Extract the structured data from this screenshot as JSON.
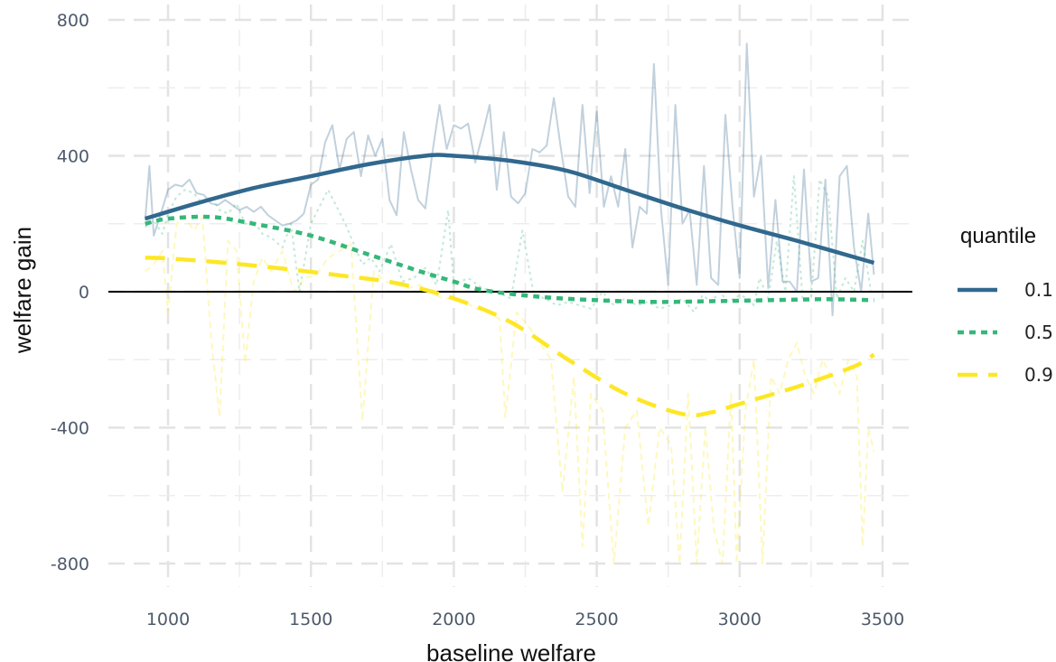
{
  "chart_data": {
    "type": "line",
    "title": "",
    "xlabel": "baseline welfare",
    "ylabel": "welfare gain",
    "xlim": [
      800,
      3600
    ],
    "ylim": [
      -870,
      800
    ],
    "x_ticks": [
      1000,
      1500,
      2000,
      2500,
      3000,
      3500
    ],
    "y_ticks": [
      -800,
      -400,
      0,
      400,
      800
    ],
    "grid": true,
    "legend": {
      "title": "quantile",
      "position": "right"
    },
    "reference_line": {
      "y": 0,
      "color": "#000000"
    },
    "series": [
      {
        "name": "0.1",
        "color": "#31688e",
        "dash": "solid",
        "smooth_x": [
          920,
          1100,
          1300,
          1500,
          1700,
          1900,
          2000,
          2200,
          2400,
          2600,
          2800,
          3000,
          3200,
          3470
        ],
        "smooth_y": [
          215,
          260,
          305,
          340,
          375,
          400,
          400,
          385,
          355,
          300,
          245,
          195,
          150,
          85
        ],
        "raw_x": [
          920,
          935,
          950,
          975,
          1000,
          1025,
          1050,
          1075,
          1100,
          1125,
          1150,
          1175,
          1200,
          1225,
          1250,
          1275,
          1300,
          1325,
          1350,
          1375,
          1400,
          1425,
          1450,
          1475,
          1500,
          1525,
          1550,
          1575,
          1600,
          1625,
          1650,
          1675,
          1700,
          1725,
          1750,
          1775,
          1800,
          1825,
          1850,
          1875,
          1900,
          1925,
          1950,
          1975,
          2000,
          2025,
          2050,
          2075,
          2100,
          2125,
          2150,
          2175,
          2200,
          2225,
          2250,
          2275,
          2300,
          2325,
          2350,
          2375,
          2400,
          2425,
          2450,
          2475,
          2500,
          2525,
          2550,
          2575,
          2600,
          2625,
          2650,
          2675,
          2700,
          2725,
          2750,
          2775,
          2800,
          2825,
          2850,
          2875,
          2900,
          2925,
          2950,
          2975,
          3000,
          3025,
          3050,
          3075,
          3100,
          3125,
          3150,
          3175,
          3200,
          3225,
          3250,
          3275,
          3300,
          3325,
          3350,
          3375,
          3400,
          3425,
          3450,
          3470
        ],
        "raw_y": [
          210,
          370,
          165,
          230,
          300,
          315,
          310,
          330,
          290,
          285,
          260,
          255,
          270,
          255,
          240,
          250,
          235,
          250,
          225,
          210,
          195,
          200,
          210,
          230,
          315,
          330,
          440,
          490,
          360,
          450,
          470,
          340,
          460,
          400,
          450,
          270,
          225,
          470,
          360,
          270,
          245,
          410,
          550,
          420,
          490,
          480,
          495,
          380,
          460,
          550,
          300,
          470,
          280,
          260,
          290,
          420,
          410,
          430,
          570,
          420,
          280,
          250,
          550,
          290,
          530,
          250,
          340,
          250,
          420,
          130,
          250,
          230,
          670,
          240,
          20,
          550,
          200,
          240,
          20,
          370,
          40,
          20,
          520,
          250,
          40,
          730,
          280,
          400,
          10,
          270,
          30,
          30,
          0,
          360,
          30,
          40,
          330,
          -70,
          340,
          370,
          130,
          0,
          230,
          50
        ]
      },
      {
        "name": "0.5",
        "color": "#35b779",
        "dash": "dotted",
        "smooth_x": [
          920,
          1000,
          1150,
          1300,
          1500,
          1700,
          1900,
          2000,
          2100,
          2300,
          2500,
          2700,
          2900,
          3100,
          3300,
          3470
        ],
        "smooth_y": [
          200,
          215,
          220,
          200,
          165,
          110,
          55,
          30,
          5,
          -15,
          -25,
          -30,
          -28,
          -25,
          -22,
          -25
        ],
        "raw_x": [
          920,
          950,
          980,
          1000,
          1030,
          1060,
          1090,
          1120,
          1150,
          1180,
          1210,
          1240,
          1270,
          1300,
          1330,
          1360,
          1400,
          1430,
          1460,
          1500,
          1530,
          1560,
          1590,
          1620,
          1650,
          1680,
          1710,
          1740,
          1780,
          1820,
          1860,
          1900,
          1940,
          1980,
          2000,
          2050,
          2100,
          2150,
          2200,
          2240,
          2280,
          2320,
          2360,
          2400,
          2440,
          2480,
          2520,
          2560,
          2600,
          2640,
          2680,
          2720,
          2760,
          2800,
          2840,
          2870,
          2900,
          2930,
          2960,
          3000,
          3030,
          3050,
          3070,
          3100,
          3130,
          3160,
          3190,
          3220,
          3250,
          3280,
          3310,
          3340,
          3370,
          3400,
          3430,
          3460,
          3470
        ],
        "raw_y": [
          190,
          210,
          170,
          230,
          280,
          300,
          290,
          260,
          280,
          240,
          230,
          260,
          200,
          210,
          170,
          160,
          130,
          200,
          0,
          200,
          250,
          300,
          250,
          200,
          140,
          80,
          100,
          60,
          140,
          30,
          40,
          70,
          20,
          240,
          20,
          40,
          10,
          0,
          -20,
          180,
          -10,
          -20,
          -40,
          -30,
          -40,
          -50,
          0,
          -40,
          -20,
          -40,
          -30,
          -50,
          -40,
          -20,
          -60,
          -10,
          -30,
          0,
          -30,
          -10,
          -20,
          -40,
          40,
          -20,
          150,
          0,
          340,
          -20,
          -20,
          330,
          280,
          -20,
          40,
          0,
          150,
          0,
          10
        ]
      },
      {
        "name": "0.9",
        "color": "#fde725",
        "dash": "dashed",
        "smooth_x": [
          920,
          1000,
          1200,
          1400,
          1600,
          1800,
          2000,
          2200,
          2400,
          2600,
          2800,
          2900,
          3000,
          3200,
          3400,
          3470
        ],
        "smooth_y": [
          100,
          98,
          85,
          68,
          48,
          25,
          -20,
          -90,
          -200,
          -300,
          -360,
          -355,
          -330,
          -280,
          -220,
          -185
        ],
        "raw_x": [
          920,
          950,
          980,
          1000,
          1030,
          1060,
          1090,
          1120,
          1150,
          1180,
          1210,
          1240,
          1270,
          1300,
          1330,
          1360,
          1400,
          1440,
          1480,
          1520,
          1560,
          1600,
          1640,
          1680,
          1720,
          1760,
          1800,
          1840,
          1880,
          1920,
          1960,
          2000,
          2040,
          2080,
          2120,
          2160,
          2180,
          2220,
          2260,
          2300,
          2340,
          2380,
          2420,
          2450,
          2480,
          2520,
          2560,
          2600,
          2640,
          2680,
          2720,
          2760,
          2790,
          2820,
          2850,
          2880,
          2910,
          2940,
          2970,
          2990,
          3020,
          3050,
          3080,
          3110,
          3140,
          3170,
          3200,
          3230,
          3260,
          3290,
          3320,
          3350,
          3380,
          3410,
          3430,
          3450,
          3470
        ],
        "raw_y": [
          60,
          80,
          120,
          -60,
          200,
          220,
          180,
          220,
          -130,
          -370,
          150,
          120,
          -210,
          30,
          100,
          60,
          120,
          0,
          40,
          50,
          100,
          120,
          140,
          -380,
          60,
          30,
          20,
          10,
          20,
          0,
          -20,
          -20,
          -30,
          -50,
          -60,
          -80,
          -370,
          -60,
          -100,
          -150,
          -200,
          -590,
          -250,
          -750,
          -300,
          -350,
          -800,
          -400,
          -350,
          -690,
          -400,
          -450,
          -800,
          -300,
          -800,
          -400,
          -700,
          -800,
          -300,
          -800,
          -350,
          -200,
          -800,
          -250,
          -300,
          -200,
          -150,
          -250,
          -300,
          -200,
          -250,
          -300,
          -200,
          -250,
          -750,
          -400,
          -470
        ]
      }
    ]
  }
}
